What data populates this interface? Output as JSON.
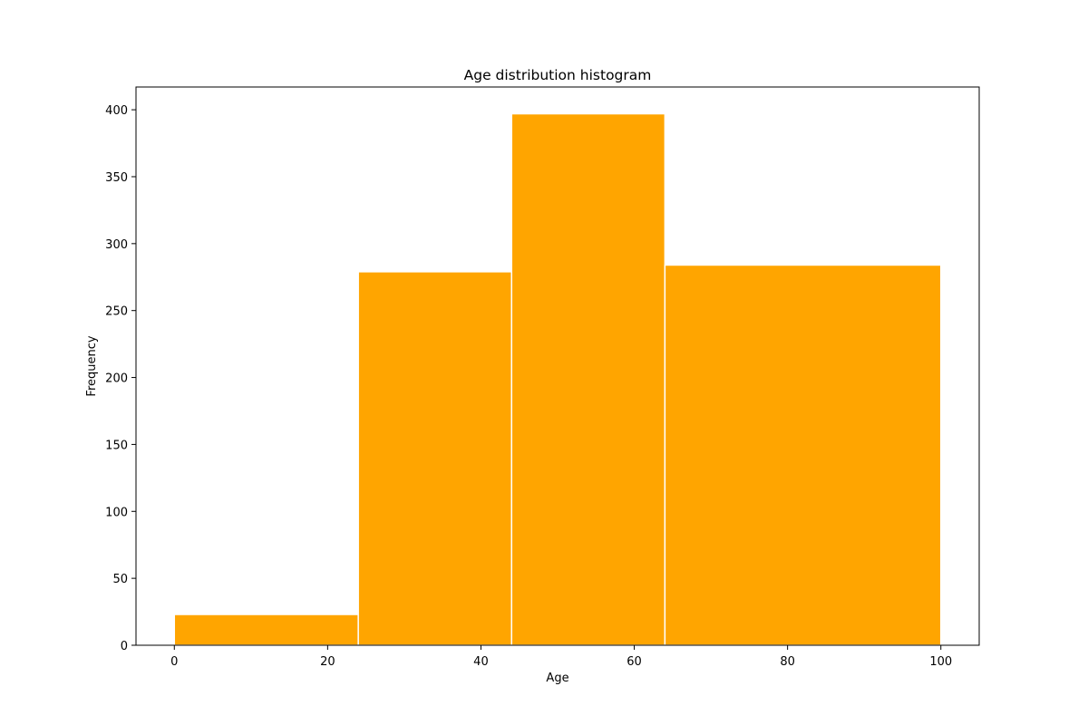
{
  "chart_data": {
    "type": "bar",
    "title": "Age distribution histogram",
    "xlabel": "Age",
    "ylabel": "Frequency",
    "bins": [
      {
        "start": 0,
        "end": 24,
        "value": 23
      },
      {
        "start": 24,
        "end": 44,
        "value": 279
      },
      {
        "start": 44,
        "end": 64,
        "value": 397
      },
      {
        "start": 64,
        "end": 100,
        "value": 284
      }
    ],
    "xlim": [
      -5,
      105
    ],
    "ylim": [
      0,
      417
    ],
    "xticks": [
      0,
      20,
      40,
      60,
      80,
      100
    ],
    "yticks": [
      0,
      50,
      100,
      150,
      200,
      250,
      300,
      350,
      400
    ],
    "grid": false,
    "bar_color": "#ffa500",
    "edge_color": "#ffffff"
  }
}
